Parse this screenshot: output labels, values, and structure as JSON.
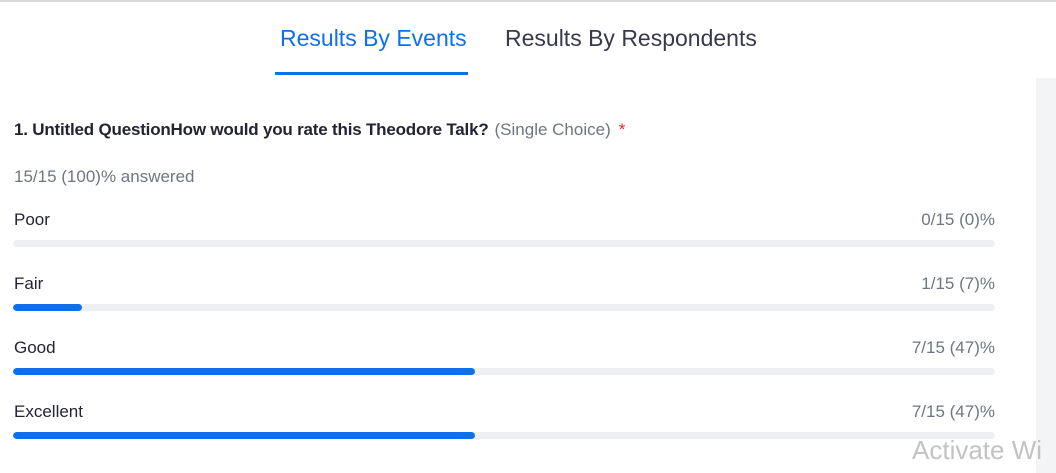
{
  "tabs": {
    "events": "Results By Events",
    "respondents": "Results By Respondents"
  },
  "question": {
    "title": "1. Untitled QuestionHow would you rate this Theodore Talk?",
    "type": "(Single Choice)",
    "required_mark": "*",
    "answered": "15/15 (100)% answered"
  },
  "options": [
    {
      "label": "Poor",
      "count": "0/15 (0)%",
      "fraction": 0
    },
    {
      "label": "Fair",
      "count": "1/15 (7)%",
      "fraction": 0.07
    },
    {
      "label": "Good",
      "count": "7/15 (47)%",
      "fraction": 0.47
    },
    {
      "label": "Excellent",
      "count": "7/15 (47)%",
      "fraction": 0.47
    }
  ],
  "watermark": "Activate Wi",
  "colors": {
    "accent": "#0e71eb",
    "track": "#eeeff2",
    "required": "#e02828"
  }
}
